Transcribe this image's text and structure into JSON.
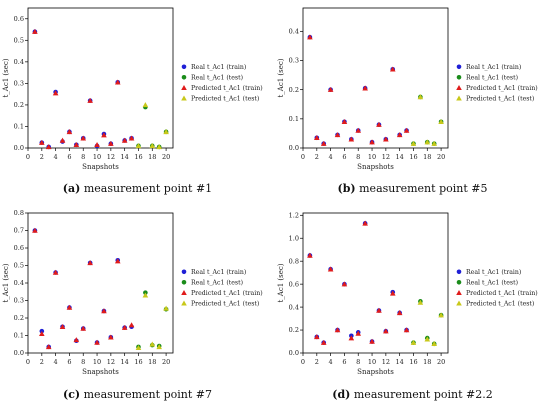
{
  "colors": {
    "real_train": "#1f1fd6",
    "real_test": "#1a8c1a",
    "pred_train": "#e01b1b",
    "pred_test": "#c8c81a"
  },
  "legend": [
    "Real t_Ac1 (train)",
    "Real t_Ac1 (test)",
    "Predicted t_Ac1 (train)",
    "Predicted t_Ac1 (test)"
  ],
  "captions": [
    {
      "tag": "(a)",
      "text": "measurement point #1"
    },
    {
      "tag": "(b)",
      "text": "measurement point #5"
    },
    {
      "tag": "(c)",
      "text": "measurement point #7"
    },
    {
      "tag": "(d)",
      "text": "measurement point #2.2"
    }
  ],
  "chart_data": [
    {
      "type": "scatter",
      "xlabel": "Snapshots",
      "ylabel": "t_Ac1 (sec)",
      "xlim": [
        0,
        21
      ],
      "ylim": [
        0,
        0.65
      ],
      "xticks": [
        0,
        2,
        4,
        6,
        8,
        10,
        12,
        14,
        16,
        18,
        20
      ],
      "yticks": [
        0,
        0.1,
        0.2,
        0.3,
        0.4,
        0.5,
        0.6
      ],
      "train_x": [
        1,
        2,
        3,
        4,
        5,
        6,
        7,
        8,
        9,
        10,
        11,
        12,
        13,
        14,
        15
      ],
      "train_real": [
        0.54,
        0.025,
        0.005,
        0.26,
        0.03,
        0.075,
        0.015,
        0.045,
        0.22,
        0.01,
        0.065,
        0.02,
        0.305,
        0.035,
        0.045
      ],
      "train_pred": [
        0.54,
        0.025,
        0.005,
        0.255,
        0.035,
        0.075,
        0.015,
        0.045,
        0.22,
        0.015,
        0.06,
        0.02,
        0.305,
        0.035,
        0.045
      ],
      "test_x": [
        16,
        17,
        18,
        19,
        20
      ],
      "test_real": [
        0.01,
        0.19,
        0.01,
        0.005,
        0.075
      ],
      "test_pred": [
        0.01,
        0.2,
        0.01,
        0.005,
        0.075
      ]
    },
    {
      "type": "scatter",
      "xlabel": "Snapshots",
      "ylabel": "t_Ac1 (sec)",
      "xlim": [
        0,
        21
      ],
      "ylim": [
        0,
        0.48
      ],
      "xticks": [
        0,
        2,
        4,
        6,
        8,
        10,
        12,
        14,
        16,
        18,
        20
      ],
      "yticks": [
        0,
        0.1,
        0.2,
        0.3,
        0.4
      ],
      "train_x": [
        1,
        2,
        3,
        4,
        5,
        6,
        7,
        8,
        9,
        10,
        11,
        12,
        13,
        14,
        15
      ],
      "train_real": [
        0.38,
        0.035,
        0.015,
        0.2,
        0.045,
        0.09,
        0.03,
        0.06,
        0.205,
        0.02,
        0.08,
        0.03,
        0.27,
        0.045,
        0.06
      ],
      "train_pred": [
        0.38,
        0.035,
        0.015,
        0.2,
        0.045,
        0.09,
        0.03,
        0.06,
        0.205,
        0.02,
        0.08,
        0.03,
        0.27,
        0.045,
        0.06
      ],
      "test_x": [
        16,
        17,
        18,
        19,
        20
      ],
      "test_real": [
        0.015,
        0.175,
        0.02,
        0.015,
        0.09
      ],
      "test_pred": [
        0.015,
        0.175,
        0.02,
        0.015,
        0.09
      ]
    },
    {
      "type": "scatter",
      "xlabel": "Snapshots",
      "ylabel": "t_Ac1 (sec)",
      "xlim": [
        0,
        21
      ],
      "ylim": [
        0,
        0.8
      ],
      "xticks": [
        0,
        2,
        4,
        6,
        8,
        10,
        12,
        14,
        16,
        18,
        20
      ],
      "yticks": [
        0,
        0.1,
        0.2,
        0.3,
        0.4,
        0.5,
        0.6,
        0.7,
        0.8
      ],
      "train_x": [
        1,
        2,
        3,
        4,
        5,
        6,
        7,
        8,
        9,
        10,
        11,
        12,
        13,
        14,
        15
      ],
      "train_real": [
        0.7,
        0.125,
        0.035,
        0.46,
        0.15,
        0.26,
        0.07,
        0.14,
        0.515,
        0.06,
        0.24,
        0.09,
        0.53,
        0.145,
        0.15
      ],
      "train_pred": [
        0.7,
        0.11,
        0.035,
        0.46,
        0.15,
        0.26,
        0.075,
        0.14,
        0.515,
        0.06,
        0.24,
        0.09,
        0.525,
        0.145,
        0.16
      ],
      "test_x": [
        16,
        17,
        18,
        19,
        20
      ],
      "test_real": [
        0.035,
        0.345,
        0.045,
        0.04,
        0.25
      ],
      "test_pred": [
        0.03,
        0.33,
        0.05,
        0.035,
        0.255
      ]
    },
    {
      "type": "scatter",
      "xlabel": "Snapshots",
      "ylabel": "t_Ac1 (sec)",
      "xlim": [
        0,
        21
      ],
      "ylim": [
        0,
        1.22
      ],
      "xticks": [
        0,
        2,
        4,
        6,
        8,
        10,
        12,
        14,
        16,
        18,
        20
      ],
      "yticks": [
        0,
        0.2,
        0.4,
        0.6,
        0.8,
        1.0,
        1.2
      ],
      "train_x": [
        1,
        2,
        3,
        4,
        5,
        6,
        7,
        8,
        9,
        10,
        11,
        12,
        13,
        14,
        15
      ],
      "train_real": [
        0.85,
        0.14,
        0.09,
        0.73,
        0.2,
        0.6,
        0.15,
        0.18,
        1.13,
        0.1,
        0.37,
        0.19,
        0.53,
        0.35,
        0.2
      ],
      "train_pred": [
        0.85,
        0.14,
        0.09,
        0.73,
        0.2,
        0.6,
        0.13,
        0.17,
        1.13,
        0.1,
        0.37,
        0.19,
        0.52,
        0.35,
        0.2
      ],
      "test_x": [
        16,
        17,
        18,
        19,
        20
      ],
      "test_real": [
        0.09,
        0.45,
        0.13,
        0.08,
        0.33
      ],
      "test_pred": [
        0.09,
        0.44,
        0.12,
        0.08,
        0.33
      ]
    }
  ]
}
